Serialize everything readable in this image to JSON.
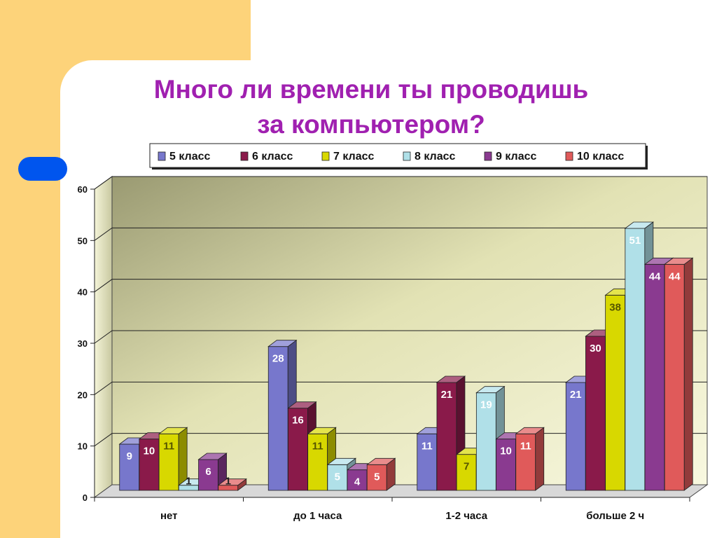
{
  "slide": {
    "title_line1": "Много ли времени ты проводишь",
    "title_line2": "за компьютером?",
    "colors": {
      "panel": "#fdd37a",
      "title": "#a020b0",
      "accent_pill": "#0055ee"
    }
  },
  "chart_data": {
    "type": "bar",
    "style": "3d-clustered",
    "categories": [
      "нет",
      "до 1 часа",
      "1-2 часа",
      "больше 2 ч"
    ],
    "series": [
      {
        "name": "5 класс",
        "color": "#7777cc",
        "values": [
          9,
          28,
          11,
          21
        ]
      },
      {
        "name": "6 класс",
        "color": "#8a1a4a",
        "values": [
          10,
          16,
          21,
          30
        ]
      },
      {
        "name": "7 класс",
        "color": "#d8d800",
        "values": [
          11,
          11,
          7,
          38
        ]
      },
      {
        "name": "8 класс",
        "color": "#b0e0e8",
        "values": [
          1,
          5,
          19,
          51
        ]
      },
      {
        "name": "9 класс",
        "color": "#8a3a90",
        "values": [
          6,
          4,
          10,
          44
        ]
      },
      {
        "name": "10 класс",
        "color": "#e05a5a",
        "values": [
          1,
          5,
          11,
          44
        ]
      }
    ],
    "ylim": [
      0,
      60
    ],
    "yticks": [
      "0",
      "10",
      "20",
      "30",
      "40",
      "50",
      "60"
    ],
    "grid": true,
    "legend_position": "top"
  }
}
